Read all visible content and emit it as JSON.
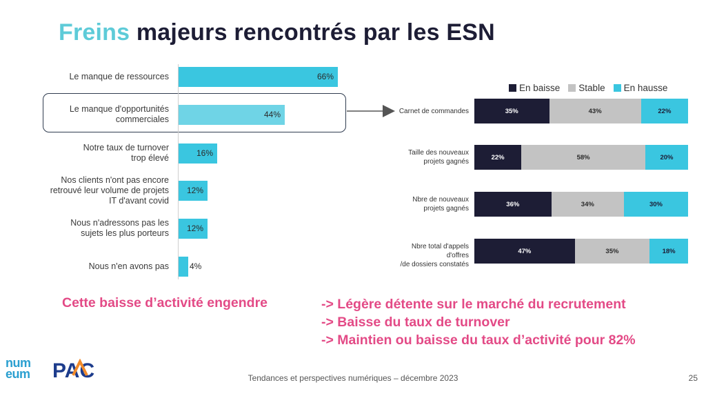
{
  "title": {
    "accent": "Freins",
    "rest": " majeurs rencontrés par les ESN"
  },
  "colors": {
    "accent": "#5ecbd8",
    "bar": "#3ac6e0",
    "dark": "#1d1d35",
    "stable": "#c3c3c3",
    "pink": "#e34a86"
  },
  "chart_data": [
    {
      "type": "bar",
      "orientation": "horizontal",
      "categories": [
        "Le manque de ressources",
        "Le manque d'opportunités\ncommerciales",
        "Notre taux de turnover\ntrop élevé",
        "Nos clients n'ont pas encore\nretrouvé leur volume de projets\nIT d'avant covid",
        "Nous n'adressons pas les\nsujets les plus porteurs",
        "Nous n'en avons pas"
      ],
      "values": [
        66,
        44,
        16,
        12,
        12,
        4
      ],
      "value_labels": [
        "66%",
        "44%",
        "16%",
        "12%",
        "12%",
        "4%"
      ],
      "xlim": [
        0,
        100
      ]
    },
    {
      "type": "bar",
      "orientation": "horizontal",
      "stacked": true,
      "categories": [
        "Carnet de commandes",
        "Taille des nouveaux\nprojets gagnés",
        "Nbre de nouveaux\nprojets gagnés",
        "Nbre total d'appels d'offres\n/de dossiers constatés"
      ],
      "series": [
        {
          "name": "En baisse",
          "color": "#1d1d35",
          "values": [
            35,
            22,
            36,
            47
          ]
        },
        {
          "name": "Stable",
          "color": "#c3c3c3",
          "values": [
            43,
            58,
            34,
            35
          ]
        },
        {
          "name": "En hausse",
          "color": "#3ac6e0",
          "values": [
            22,
            20,
            30,
            18
          ]
        }
      ],
      "legend": "top"
    }
  ],
  "callout": {
    "left": "Cette baisse d’activité engendre",
    "lines": [
      "-> Légère détente sur le marché du recrutement",
      "-> Baisse du taux de turnover",
      "-> Maintien ou baisse du taux d’activité pour 82%"
    ]
  },
  "logos": {
    "numeum": "num\neum",
    "pac": "PAC"
  },
  "footer": "Tendances et perspectives numériques – décembre 2023",
  "page_number": "25"
}
